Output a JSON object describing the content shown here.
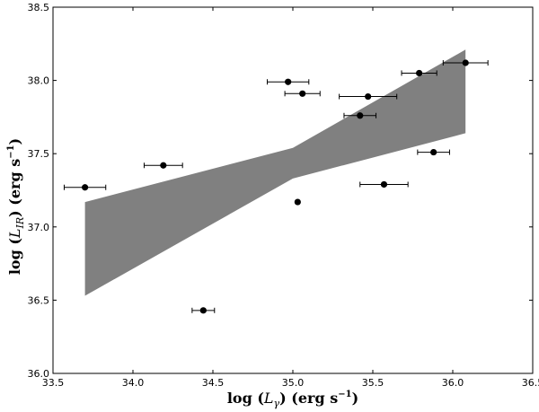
{
  "chart_data": {
    "type": "scatter",
    "title": "",
    "xlabel": "log (L_γ) (erg s⁻¹)",
    "ylabel": "log (L_IR) (erg s⁻¹)",
    "xlabel_parts": {
      "prefix": "log (",
      "sym": "L",
      "sub": "γ",
      "suffix": ") (erg s",
      "sup": "−1",
      "close": ")"
    },
    "ylabel_parts": {
      "prefix": "log (",
      "sym": "L",
      "sub": "IR",
      "suffix": ") (erg s",
      "sup": "−1",
      "close": ")"
    },
    "xlim": [
      33.5,
      36.5
    ],
    "ylim": [
      36.0,
      38.5
    ],
    "xticks": [
      "33.5",
      "34.0",
      "34.5",
      "35.0",
      "35.5",
      "36.0",
      "36.5"
    ],
    "yticks": [
      "36.0",
      "36.5",
      "37.0",
      "37.5",
      "38.0",
      "38.5"
    ],
    "grid": false,
    "colors": {
      "points": "#000000",
      "band": "#808080",
      "axes": "#000000"
    },
    "points": [
      {
        "x": 33.7,
        "y": 37.27,
        "xerr": 0.13
      },
      {
        "x": 34.19,
        "y": 37.42,
        "xerr": 0.12
      },
      {
        "x": 34.44,
        "y": 36.43,
        "xerr": 0.07
      },
      {
        "x": 34.97,
        "y": 37.99,
        "xerr": 0.13
      },
      {
        "x": 35.03,
        "y": 37.17
      },
      {
        "x": 35.06,
        "y": 37.91,
        "xerr": 0.11
      },
      {
        "x": 35.42,
        "y": 37.76,
        "xerr": 0.1
      },
      {
        "x": 35.47,
        "y": 37.89,
        "xerr": 0.18
      },
      {
        "x": 35.57,
        "y": 37.29,
        "xerr": 0.15
      },
      {
        "x": 35.79,
        "y": 38.05,
        "xerr": 0.11
      },
      {
        "x": 35.88,
        "y": 37.51,
        "xerr": 0.1
      },
      {
        "x": 36.08,
        "y": 38.12,
        "xerr": 0.14
      }
    ],
    "band": {
      "upper": [
        [
          33.7,
          37.17
        ],
        [
          35.0,
          37.54
        ],
        [
          36.08,
          38.21
        ]
      ],
      "lower": [
        [
          36.08,
          37.64
        ],
        [
          35.0,
          37.33
        ],
        [
          33.7,
          36.53
        ]
      ]
    }
  }
}
